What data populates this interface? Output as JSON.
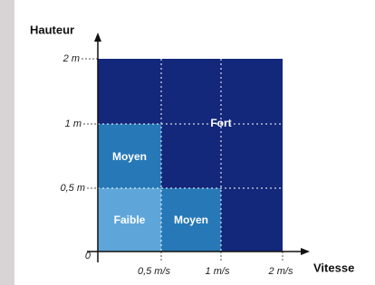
{
  "y_axis": {
    "title": "Hauteur",
    "ticks": [
      "2 m",
      "1 m",
      "0,5 m",
      "0"
    ]
  },
  "x_axis": {
    "title": "Vitesse",
    "ticks": [
      "0,5 m/s",
      "1 m/s",
      "2 m/s"
    ]
  },
  "zones": [
    {
      "label": "Faible"
    },
    {
      "label": "Moyen"
    },
    {
      "label": "Moyen"
    },
    {
      "label": "Fort"
    }
  ]
}
